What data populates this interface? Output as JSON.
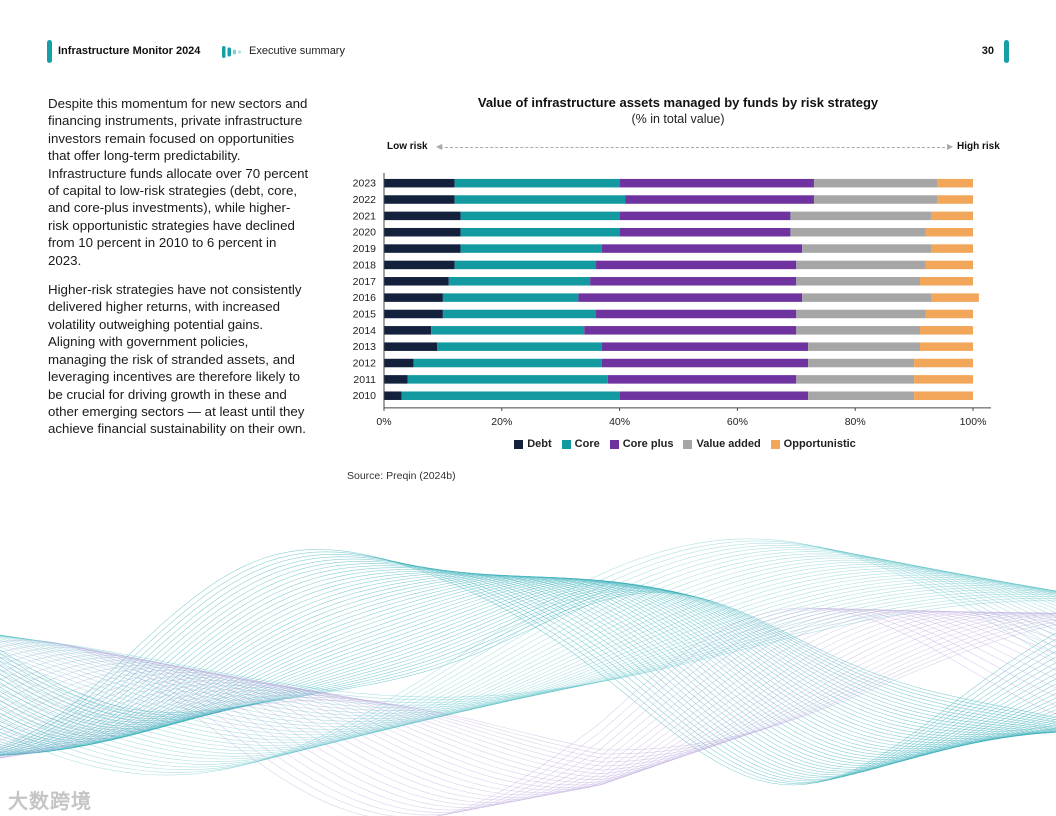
{
  "header": {
    "report_title": "Infrastructure Monitor 2024",
    "section_title": "Executive summary",
    "page_number": "30",
    "accent_color": "#16a0a5"
  },
  "body": {
    "paragraphs": [
      "Despite this momentum for new sectors and financing instruments, private infrastructure investors remain focused on opportunities that offer long-term predictability. Infrastructure funds allocate over 70 percent of capital to low-risk strategies (debt, core, and core-plus investments), while higher-risk opportunistic strategies have declined from 10 percent in 2010 to 6 percent in 2023.",
      "Higher-risk strategies have not consistently delivered higher returns, with increased volatility outweighing potential gains. Aligning with government policies, managing the risk of stranded assets, and leveraging incentives are therefore likely to be crucial for driving growth in these and other emerging sectors — at least until they achieve financial sustainability on their own."
    ]
  },
  "chart_data": {
    "type": "bar",
    "orientation": "horizontal",
    "stacked": true,
    "title": "Value of infrastructure assets managed by funds by risk strategy",
    "subtitle": "(% in total value)",
    "risk_low_label": "Low risk",
    "risk_high_label": "High risk",
    "xlabel": "",
    "ylabel": "",
    "xlim": [
      0,
      100
    ],
    "x_ticks": [
      "0%",
      "20%",
      "40%",
      "60%",
      "80%",
      "100%"
    ],
    "categories": [
      "2023",
      "2022",
      "2021",
      "2020",
      "2019",
      "2018",
      "2017",
      "2016",
      "2015",
      "2014",
      "2013",
      "2012",
      "2011",
      "2010"
    ],
    "series": [
      {
        "name": "Debt",
        "color": "#14213d",
        "values": [
          12,
          12,
          13,
          13,
          13,
          12,
          11,
          10,
          10,
          8,
          9,
          5,
          4,
          3
        ]
      },
      {
        "name": "Core",
        "color": "#129aa0",
        "values": [
          28,
          29,
          27,
          27,
          24,
          24,
          24,
          23,
          26,
          26,
          28,
          32,
          34,
          37
        ]
      },
      {
        "name": "Core plus",
        "color": "#6f33a0",
        "values": [
          33,
          32,
          29,
          29,
          34,
          34,
          35,
          38,
          34,
          36,
          35,
          35,
          32,
          32
        ]
      },
      {
        "name": "Value added",
        "color": "#a6a6a6",
        "values": [
          21,
          21,
          24,
          23,
          22,
          22,
          21,
          22,
          22,
          21,
          19,
          18,
          20,
          18
        ]
      },
      {
        "name": "Opportunistic",
        "color": "#f2a65a",
        "values": [
          6,
          6,
          7,
          8,
          7,
          8,
          9,
          8,
          8,
          9,
          9,
          10,
          10,
          10
        ]
      }
    ],
    "legend_position": "bottom"
  },
  "source": "Source: Preqin (2024b)",
  "watermark": "大数跨境"
}
